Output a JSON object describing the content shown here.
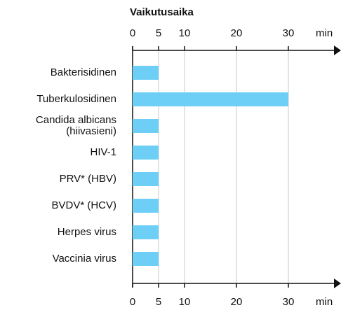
{
  "chart_data": {
    "type": "barh",
    "title": "Vaikutusaika",
    "xlabel": "min",
    "categories": [
      "Bakterisidinen",
      "Tuberkulosidinen",
      "Candida albicans\n(hiivasieni)",
      "HIV-1",
      "PRV* (HBV)",
      "BVDV* (HCV)",
      "Herpes virus",
      "Vaccinia virus"
    ],
    "values": [
      5,
      30,
      5,
      5,
      5,
      5,
      5,
      5
    ],
    "color": "#6dcff6",
    "xlim": [
      0,
      40
    ],
    "xticks": [
      0,
      5,
      10,
      20,
      30
    ],
    "grid": true
  }
}
